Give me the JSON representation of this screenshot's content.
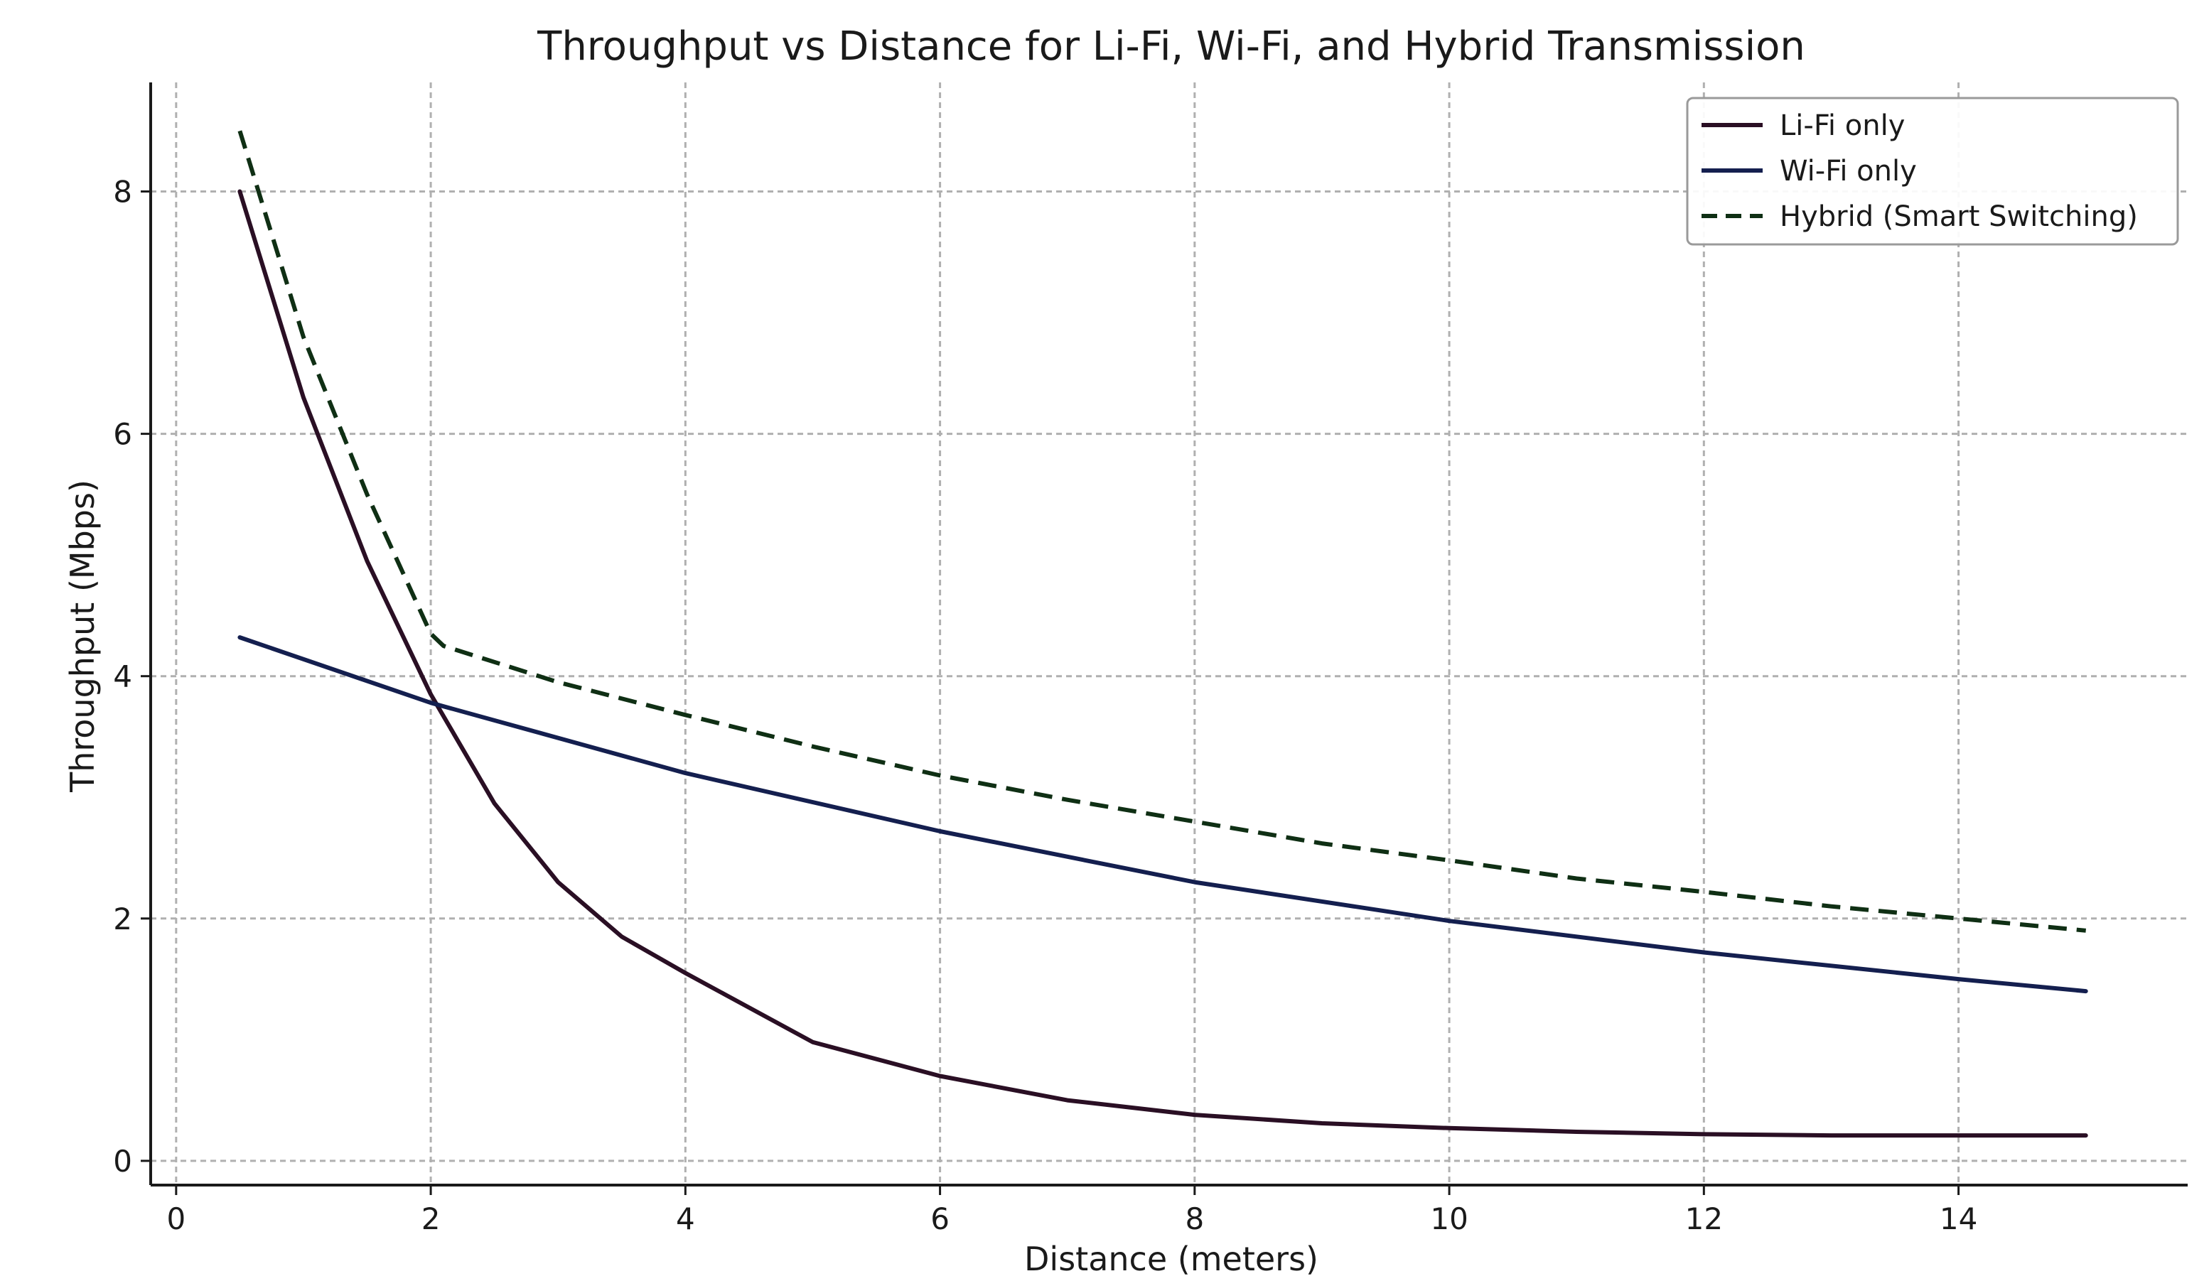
{
  "chart_data": {
    "type": "line",
    "title": "Throughput vs Distance for Li-Fi, Wi-Fi, and Hybrid Transmission",
    "xlabel": "Distance (meters)",
    "ylabel": "Throughput (Mbps)",
    "xlim": [
      -0.2,
      15.8
    ],
    "ylim": [
      -0.2,
      8.9
    ],
    "xticks": [
      0,
      2,
      4,
      6,
      8,
      10,
      12,
      14
    ],
    "yticks": [
      0,
      2,
      4,
      6,
      8
    ],
    "grid": true,
    "legend_position": "top-right",
    "series": [
      {
        "name": "Li-Fi only",
        "color": "#2a0f24",
        "dash": "solid",
        "x": [
          0.5,
          1.0,
          1.5,
          2.0,
          2.5,
          3.0,
          3.5,
          4.0,
          5.0,
          6.0,
          7.0,
          8.0,
          9.0,
          10.0,
          11.0,
          12.0,
          13.0,
          14.0,
          15.0
        ],
        "y": [
          8.0,
          6.3,
          4.95,
          3.85,
          2.95,
          2.3,
          1.85,
          1.55,
          0.98,
          0.7,
          0.5,
          0.38,
          0.31,
          0.27,
          0.24,
          0.22,
          0.21,
          0.21,
          0.21
        ]
      },
      {
        "name": "Wi-Fi only",
        "color": "#141f4f",
        "dash": "solid",
        "x": [
          0.5,
          2.0,
          4.0,
          6.0,
          8.0,
          10.0,
          12.0,
          14.0,
          15.0
        ],
        "y": [
          4.32,
          3.78,
          3.2,
          2.72,
          2.3,
          1.98,
          1.72,
          1.5,
          1.4
        ]
      },
      {
        "name": "Hybrid (Smart Switching)",
        "color": "#0f2f14",
        "dash": "dashed",
        "x": [
          0.5,
          1.0,
          1.5,
          2.0,
          2.1,
          3.0,
          4.0,
          5.0,
          6.0,
          7.0,
          8.0,
          9.0,
          10.0,
          11.0,
          12.0,
          13.0,
          14.0,
          15.0
        ],
        "y": [
          8.5,
          6.8,
          5.5,
          4.35,
          4.25,
          3.95,
          3.68,
          3.42,
          3.18,
          2.98,
          2.8,
          2.62,
          2.48,
          2.33,
          2.22,
          2.1,
          2.0,
          1.9
        ]
      }
    ]
  }
}
